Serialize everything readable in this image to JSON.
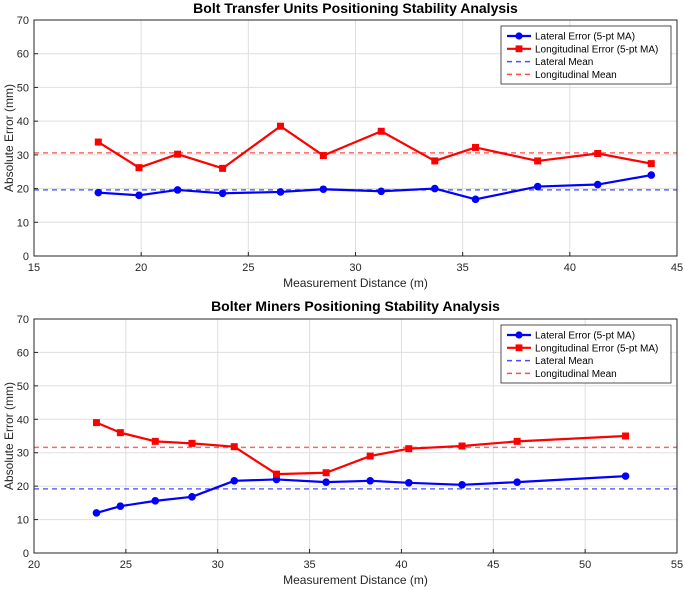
{
  "chart_data": [
    {
      "type": "line",
      "title": "Bolt Transfer Units Positioning Stability Analysis",
      "xlabel": "Measurement Distance (m)",
      "ylabel": "Absolute Error (mm)",
      "xlim": [
        15,
        45
      ],
      "ylim": [
        0,
        70
      ],
      "xticks": [
        15,
        20,
        25,
        30,
        35,
        40,
        45
      ],
      "yticks": [
        0,
        10,
        20,
        30,
        40,
        50,
        60,
        70
      ],
      "grid": true,
      "legend_position": "top-right",
      "series": [
        {
          "name": "Lateral Error (5-pt MA)",
          "color": "#0000ff",
          "marker": "circle",
          "x": [
            18.0,
            19.9,
            21.7,
            23.8,
            26.5,
            28.5,
            31.2,
            33.7,
            35.6,
            38.5,
            41.3,
            43.8
          ],
          "y": [
            18.8,
            18.0,
            19.6,
            18.6,
            19.0,
            19.8,
            19.2,
            20.0,
            16.8,
            20.6,
            21.2,
            24.0
          ]
        },
        {
          "name": "Longitudinal Error (5-pt MA)",
          "color": "#ff0000",
          "marker": "square",
          "x": [
            18.0,
            19.9,
            21.7,
            23.8,
            26.5,
            28.5,
            31.2,
            33.7,
            35.6,
            38.5,
            41.3,
            43.8
          ],
          "y": [
            33.8,
            26.2,
            30.2,
            26.0,
            38.5,
            29.8,
            37.0,
            28.2,
            32.2,
            28.2,
            30.4,
            27.4
          ]
        },
        {
          "name": "Lateral Mean",
          "color": "#0000ff",
          "style": "dashed",
          "value": 19.6
        },
        {
          "name": "Longitudinal Mean",
          "color": "#ff0000",
          "style": "dashed",
          "value": 30.6
        }
      ]
    },
    {
      "type": "line",
      "title": "Bolter Miners Positioning Stability Analysis",
      "xlabel": "Measurement Distance (m)",
      "ylabel": "Absolute Error (mm)",
      "xlim": [
        20,
        55
      ],
      "ylim": [
        0,
        70
      ],
      "xticks": [
        20,
        25,
        30,
        35,
        40,
        45,
        50,
        55
      ],
      "yticks": [
        0,
        10,
        20,
        30,
        40,
        50,
        60,
        70
      ],
      "grid": true,
      "legend_position": "top-right",
      "series": [
        {
          "name": "Lateral Error (5-pt MA)",
          "color": "#0000ff",
          "marker": "circle",
          "x": [
            23.4,
            24.7,
            26.6,
            28.6,
            30.9,
            33.2,
            35.9,
            38.3,
            40.4,
            43.3,
            46.3,
            52.2
          ],
          "y": [
            12.0,
            14.0,
            15.6,
            16.8,
            21.6,
            22.0,
            21.2,
            21.6,
            21.0,
            20.4,
            21.2,
            23.0
          ]
        },
        {
          "name": "Longitudinal Error (5-pt MA)",
          "color": "#ff0000",
          "marker": "square",
          "x": [
            23.4,
            24.7,
            26.6,
            28.6,
            30.9,
            33.2,
            35.9,
            38.3,
            40.4,
            43.3,
            46.3,
            52.2
          ],
          "y": [
            39.0,
            36.0,
            33.4,
            32.8,
            31.8,
            23.6,
            24.0,
            29.0,
            31.2,
            32.0,
            33.4,
            35.0
          ]
        },
        {
          "name": "Lateral Mean",
          "color": "#0000ff",
          "style": "dashed",
          "value": 19.2
        },
        {
          "name": "Longitudinal Mean",
          "color": "#ff0000",
          "style": "dashed",
          "value": 31.6
        }
      ]
    }
  ]
}
